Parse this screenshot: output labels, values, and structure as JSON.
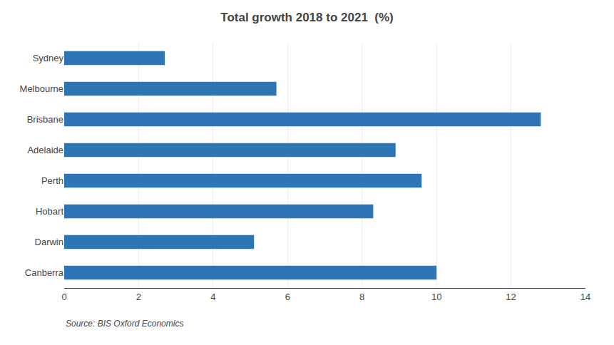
{
  "chart_data": {
    "type": "bar",
    "orientation": "horizontal",
    "title": "Total growth 2018 to 2021  (%)",
    "categories": [
      "Sydney",
      "Melbourne",
      "Brisbane",
      "Adelaide",
      "Perth",
      "Hobart",
      "Darwin",
      "Canberra"
    ],
    "values": [
      2.7,
      5.7,
      12.8,
      8.9,
      9.6,
      8.3,
      5.1,
      10.0
    ],
    "color": "#2E75B6",
    "xlim": [
      0,
      14
    ],
    "xticks": [
      0,
      2,
      4,
      6,
      8,
      10,
      12,
      14
    ],
    "grid": true,
    "annotations": [
      "Source: BIS Oxford Economics"
    ]
  }
}
